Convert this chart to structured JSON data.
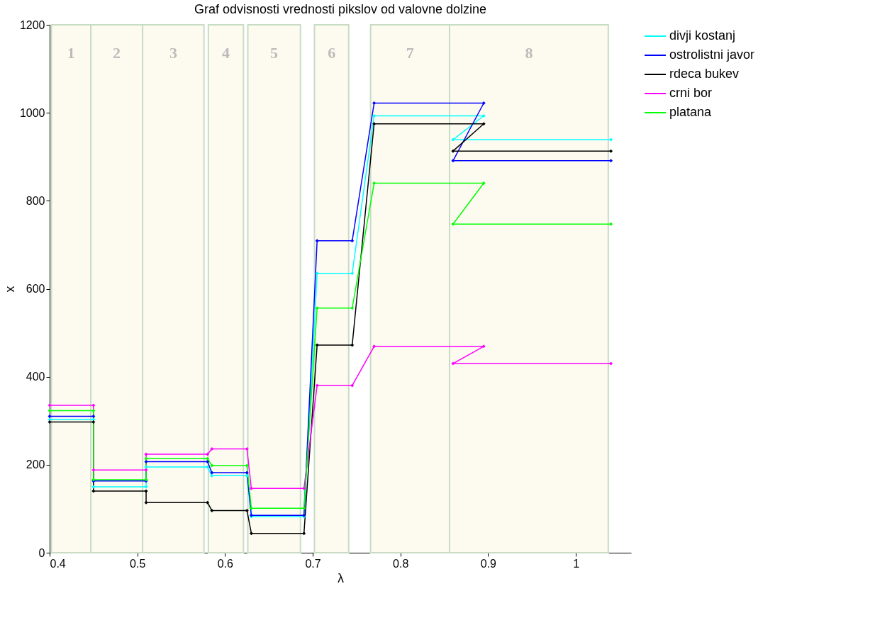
{
  "chart_data": {
    "type": "line",
    "title": "Graf odvisnosti vrednosti pikslov od valovne dolzine",
    "xlabel": "λ",
    "ylabel": "x",
    "x": [
      0.4,
      0.45,
      0.45,
      0.51,
      0.51,
      0.58,
      0.585,
      0.625,
      0.63,
      0.69,
      0.705,
      0.745,
      0.77,
      0.895,
      0.86,
      1.04
    ],
    "series": [
      {
        "name": "divji kostanj",
        "color": "#00ffff",
        "values": [
          303,
          303,
          150,
          150,
          195,
          195,
          175,
          175,
          82,
          82,
          635,
          635,
          993,
          993,
          939,
          939
        ]
      },
      {
        "name": "ostrolistni javor",
        "color": "#0000ff",
        "values": [
          310,
          310,
          163,
          163,
          207,
          207,
          182,
          182,
          85,
          85,
          709,
          709,
          1022,
          1022,
          891,
          891
        ]
      },
      {
        "name": "rdeca bukev",
        "color": "#000000",
        "values": [
          297,
          297,
          140,
          140,
          114,
          114,
          96,
          96,
          44,
          44,
          472,
          472,
          975,
          975,
          913,
          913
        ]
      },
      {
        "name": "crni bor",
        "color": "#ff00ff",
        "values": [
          335,
          335,
          188,
          188,
          224,
          224,
          236,
          236,
          146,
          146,
          380,
          380,
          469,
          469,
          430,
          430
        ]
      },
      {
        "name": "platana",
        "color": "#00ff00",
        "values": [
          323,
          323,
          166,
          166,
          214,
          214,
          198,
          198,
          101,
          101,
          556,
          556,
          840,
          840,
          747,
          747
        ]
      }
    ],
    "bands": [
      {
        "axis": "x",
        "from": 0.402,
        "to": 0.447,
        "label": "1",
        "color": "#fdfbf0"
      },
      {
        "axis": "x",
        "from": 0.447,
        "to": 0.506,
        "label": "2",
        "color": "#fdfbf0"
      },
      {
        "axis": "x",
        "from": 0.506,
        "to": 0.576,
        "label": "3",
        "color": "#fdfbf0"
      },
      {
        "axis": "x",
        "from": 0.581,
        "to": 0.621,
        "label": "4",
        "color": "#fdfbf0"
      },
      {
        "axis": "x",
        "from": 0.626,
        "to": 0.686,
        "label": "5",
        "color": "#fdfbf0"
      },
      {
        "axis": "x",
        "from": 0.702,
        "to": 0.741,
        "label": "6",
        "color": "#fdfbf0"
      },
      {
        "axis": "x",
        "from": 0.766,
        "to": 0.856,
        "label": "7",
        "color": "#fdfbf0"
      },
      {
        "axis": "x",
        "from": 0.856,
        "to": 1.037,
        "label": "8",
        "color": "#fdfbf0"
      }
    ],
    "xlim": [
      0.4,
      1.063
    ],
    "xticks": [
      0.4,
      0.5,
      0.6,
      0.7,
      0.8,
      0.9,
      1
    ],
    "ylim": [
      0,
      1200
    ],
    "yticks": [
      0,
      200,
      400,
      600,
      800,
      1000,
      1200
    ],
    "grid": false,
    "legend": "top right",
    "marker": "diamond",
    "line_style": "solid"
  }
}
